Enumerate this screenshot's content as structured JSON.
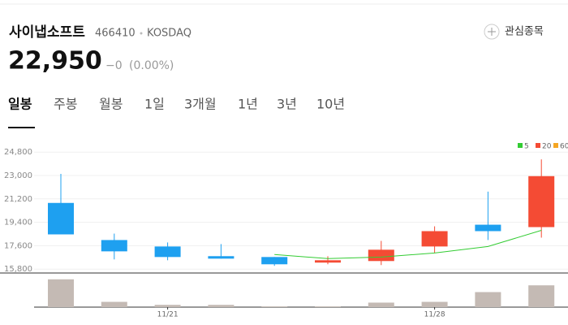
{
  "header": {
    "name": "사이냅소프트",
    "code": "466410",
    "market": "KOSDAQ",
    "watch": "관심종목",
    "price": "22,950",
    "change": "−0",
    "change_pct": "(0.00%)"
  },
  "tabs": [
    "일봉",
    "주봉",
    "월봉",
    "1일",
    "3개월",
    "1년",
    "3년",
    "10년"
  ],
  "chart_data": {
    "type": "candlestick",
    "x": [
      null,
      null,
      "11/21",
      null,
      null,
      null,
      null,
      "11/28",
      null,
      null
    ],
    "open": [
      20890,
      18035,
      17540,
      16795,
      16730,
      16300,
      16420,
      17540,
      19215,
      19030
    ],
    "close": [
      18470,
      17165,
      16730,
      16605,
      16170,
      16480,
      17290,
      18720,
      18720,
      22950
    ],
    "high": [
      23125,
      18530,
      17850,
      17725,
      16730,
      16790,
      17970,
      19090,
      21760,
      24240
    ],
    "low": [
      18470,
      16545,
      16480,
      16605,
      16050,
      16170,
      16110,
      17040,
      18035,
      18220
    ],
    "up_color": "#f44b34",
    "down_color": "#1ea0f0",
    "volume": [
      37,
      7,
      3,
      3,
      1,
      1,
      6,
      7,
      20,
      29
    ],
    "volume_color": "#c4bab4",
    "volume_lim": [
      0,
      40
    ],
    "ylim": [
      15500,
      25250
    ],
    "yticks": [
      {
        "value": 15800,
        "label": "15,800"
      },
      {
        "value": 17600,
        "label": "17,600"
      },
      {
        "value": 19400,
        "label": "19,400"
      },
      {
        "value": 21200,
        "label": "21,200"
      },
      {
        "value": 23000,
        "label": "23,000"
      },
      {
        "value": 24800,
        "label": "24,800"
      }
    ],
    "grid": true,
    "series": [
      {
        "name": "5",
        "color": "#33cc33",
        "values": [
          null,
          null,
          null,
          null,
          16920,
          16610,
          16730,
          17040,
          17540,
          18780
        ]
      },
      {
        "name": "20",
        "color": "#f44b34",
        "values": [
          null,
          null,
          null,
          null,
          null,
          null,
          null,
          null,
          null,
          null
        ]
      },
      {
        "name": "60",
        "color": "#f5a623",
        "values": [
          null,
          null,
          null,
          null,
          null,
          null,
          null,
          null,
          null,
          null
        ]
      }
    ]
  }
}
